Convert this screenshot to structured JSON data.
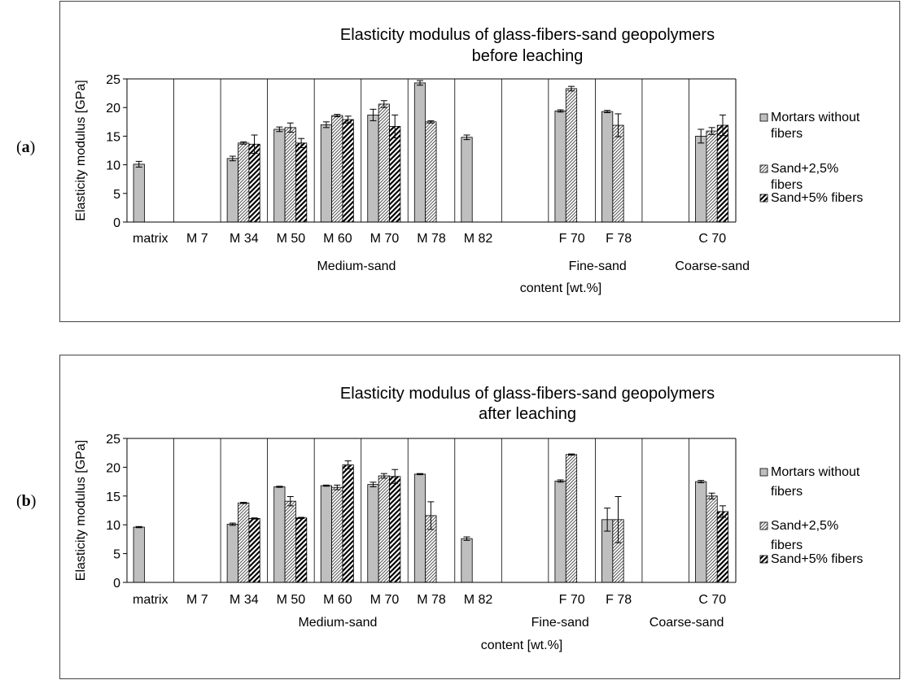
{
  "panels": [
    {
      "open": "(",
      "letter": "a",
      "close": ")"
    },
    {
      "open": "(",
      "letter": "b",
      "close": ")"
    }
  ],
  "chart_data": [
    {
      "type": "bar",
      "title": [
        "Elasticity modulus of glass-fibers-sand geopolymers",
        "before leaching"
      ],
      "ylabel": "Elasticity modulus  [GPa]",
      "ylim": [
        0,
        25
      ],
      "yticks": [
        0,
        5,
        10,
        15,
        20,
        25
      ],
      "categories": [
        "matrix",
        "M 7",
        "M 34",
        "M 50",
        "M 60",
        "M 70",
        "M 78",
        "M 82",
        "",
        "F 70",
        "F 78",
        "",
        "C 70"
      ],
      "group_labels": [
        {
          "text": "Medium-sand",
          "position": "under M 50 – M 82"
        },
        {
          "text": "Fine-sand",
          "position": "under F 70 – F 78"
        },
        {
          "text": "Coarse-sand",
          "position": "under C 70"
        }
      ],
      "xlabel": "content [wt.%]",
      "legend_position": "right",
      "series": [
        {
          "name": [
            "Mortars without",
            "fibers"
          ],
          "pattern": "solid-gray",
          "values": [
            10.1,
            null,
            11.1,
            16.2,
            17.0,
            18.7,
            24.3,
            14.8,
            null,
            19.4,
            19.3,
            null,
            15.0
          ],
          "errors": [
            0.5,
            null,
            0.4,
            0.4,
            0.5,
            1.0,
            0.4,
            0.4,
            null,
            0.2,
            0.2,
            null,
            1.2
          ]
        },
        {
          "name": [
            "Sand+2,5%",
            "fibers"
          ],
          "pattern": "light-hatch",
          "values": [
            null,
            null,
            13.8,
            16.5,
            18.6,
            20.6,
            17.5,
            null,
            null,
            23.3,
            16.9,
            null,
            15.9
          ],
          "errors": [
            null,
            null,
            0.2,
            0.8,
            0.2,
            0.6,
            0.2,
            null,
            null,
            0.4,
            2.0,
            null,
            0.6
          ]
        },
        {
          "name": [
            "Sand+5% fibers"
          ],
          "pattern": "dark-hatch",
          "values": [
            null,
            null,
            13.6,
            13.8,
            17.9,
            16.7,
            null,
            null,
            null,
            null,
            null,
            null,
            16.9
          ],
          "errors": [
            null,
            null,
            1.6,
            0.8,
            0.6,
            2.0,
            null,
            null,
            null,
            null,
            null,
            null,
            1.8
          ]
        }
      ]
    },
    {
      "type": "bar",
      "title": [
        "Elasticity modulus of glass-fibers-sand geopolymers",
        "after leaching"
      ],
      "ylabel": "Elasticity modulus  [GPa]",
      "ylim": [
        0,
        25
      ],
      "yticks": [
        0,
        5,
        10,
        15,
        20,
        25
      ],
      "categories": [
        "matrix",
        "M 7",
        "M 34",
        "M 50",
        "M 60",
        "M 70",
        "M 78",
        "M 82",
        "",
        "F 70",
        "F 78",
        "",
        "C 70"
      ],
      "group_labels": [
        {
          "text": "Medium-sand",
          "position": "under M 50 – M 82"
        },
        {
          "text": "Fine-sand",
          "position": "under F 70 – F 78"
        },
        {
          "text": "Coarse-sand",
          "position": "under C 70"
        }
      ],
      "xlabel": "content [wt.%]",
      "legend_position": "right",
      "series": [
        {
          "name": [
            "Mortars without",
            "fibers"
          ],
          "pattern": "solid-gray",
          "values": [
            9.6,
            null,
            10.1,
            16.6,
            16.8,
            17.0,
            18.8,
            7.6,
            null,
            17.6,
            10.9,
            null,
            17.5
          ],
          "errors": [
            0.1,
            null,
            0.2,
            0.1,
            0.1,
            0.4,
            0.1,
            0.3,
            null,
            0.2,
            2.0,
            null,
            0.2
          ]
        },
        {
          "name": [
            "Sand+2,5%",
            "fibers"
          ],
          "pattern": "light-hatch",
          "values": [
            null,
            null,
            13.8,
            14.1,
            16.5,
            18.5,
            11.6,
            null,
            null,
            22.2,
            10.9,
            null,
            15.0
          ],
          "errors": [
            null,
            null,
            0.1,
            0.8,
            0.4,
            0.4,
            2.4,
            null,
            null,
            0.1,
            4.0,
            null,
            0.5
          ]
        },
        {
          "name": [
            "Sand+5%  fibers"
          ],
          "pattern": "dark-hatch",
          "values": [
            null,
            null,
            11.1,
            11.2,
            20.4,
            18.4,
            null,
            null,
            null,
            null,
            null,
            null,
            12.3
          ],
          "errors": [
            null,
            null,
            0.1,
            0.1,
            0.7,
            1.2,
            null,
            null,
            null,
            null,
            null,
            null,
            1.0
          ]
        }
      ]
    }
  ]
}
